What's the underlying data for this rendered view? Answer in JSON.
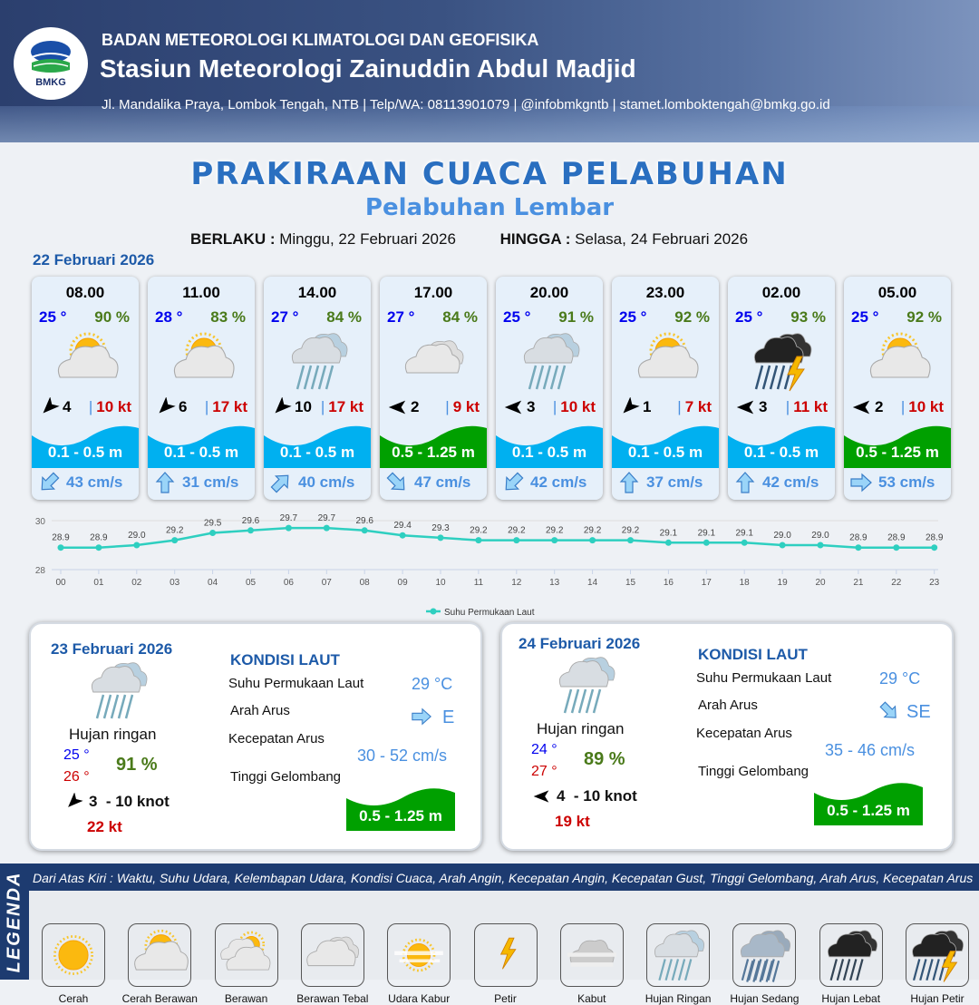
{
  "header": {
    "logo_text": "BMKG",
    "agency": "BADAN METEOROLOGI KLIMATOLOGI DAN GEOFISIKA",
    "station": "Stasiun Meteorologi Zainuddin Abdul Madjid",
    "contact": "Jl. Mandalika Praya, Lombok Tengah, NTB | Telp/WA: 08113901079 | @infobmkgntb | stamet.lomboktengah@bmkg.go.id"
  },
  "title": "PRAKIRAAN CUACA PELABUHAN",
  "subtitle": "Pelabuhan Lembar",
  "validity": {
    "from_label": "BERLAKU :",
    "from": "Minggu, 22 Februari 2026",
    "to_label": "HINGGA :",
    "to": "Selasa, 24 Februari 2026"
  },
  "day1": {
    "date": "22 Februari 2026",
    "forecasts": [
      {
        "time": "08.00",
        "temp": "25 °",
        "rh": "90 %",
        "icon": "cerah-berawan",
        "wind_dir": "NE",
        "wind": "4",
        "gust": "10 kt",
        "wave": "0.1 - 0.5 m",
        "wave_color": "#00b0f0",
        "cur_dir": "SW",
        "current": "43 cm/s"
      },
      {
        "time": "11.00",
        "temp": "28 °",
        "rh": "83 %",
        "icon": "cerah-berawan",
        "wind_dir": "NE",
        "wind": "6",
        "gust": "17 kt",
        "wave": "0.1 - 0.5 m",
        "wave_color": "#00b0f0",
        "cur_dir": "N",
        "current": "31 cm/s"
      },
      {
        "time": "14.00",
        "temp": "27 °",
        "rh": "84 %",
        "icon": "hujan-ringan",
        "wind_dir": "NE",
        "wind": "10",
        "gust": "17 kt",
        "wave": "0.1 - 0.5 m",
        "wave_color": "#00b0f0",
        "cur_dir": "NE",
        "current": "40 cm/s"
      },
      {
        "time": "17.00",
        "temp": "27 °",
        "rh": "84 %",
        "icon": "berawan-tebal",
        "wind_dir": "W",
        "wind": "2",
        "gust": "9 kt",
        "wave": "0.5 - 1.25 m",
        "wave_color": "#00a000",
        "cur_dir": "SE",
        "current": "47 cm/s"
      },
      {
        "time": "20.00",
        "temp": "25 °",
        "rh": "91 %",
        "icon": "hujan-ringan",
        "wind_dir": "W",
        "wind": "3",
        "gust": "10 kt",
        "wave": "0.1 - 0.5 m",
        "wave_color": "#00b0f0",
        "cur_dir": "SW",
        "current": "42 cm/s"
      },
      {
        "time": "23.00",
        "temp": "25 °",
        "rh": "92 %",
        "icon": "cerah-berawan",
        "wind_dir": "SW",
        "wind": "1",
        "gust": "7 kt",
        "wave": "0.1 - 0.5 m",
        "wave_color": "#00b0f0",
        "cur_dir": "N",
        "current": "37 cm/s"
      },
      {
        "time": "02.00",
        "temp": "25 °",
        "rh": "93 %",
        "icon": "hujan-petir",
        "wind_dir": "W",
        "wind": "3",
        "gust": "11 kt",
        "wave": "0.1 - 0.5 m",
        "wave_color": "#00b0f0",
        "cur_dir": "N",
        "current": "42 cm/s"
      },
      {
        "time": "05.00",
        "temp": "25 °",
        "rh": "92 %",
        "icon": "cerah-berawan",
        "wind_dir": "W",
        "wind": "2",
        "gust": "10 kt",
        "wave": "0.5 - 1.25 m",
        "wave_color": "#00a000",
        "cur_dir": "E",
        "current": "53 cm/s"
      }
    ]
  },
  "chart_data": {
    "type": "line",
    "x": [
      "00",
      "01",
      "02",
      "03",
      "04",
      "05",
      "06",
      "07",
      "08",
      "09",
      "10",
      "11",
      "12",
      "13",
      "14",
      "15",
      "16",
      "17",
      "18",
      "19",
      "20",
      "21",
      "22",
      "23"
    ],
    "series": [
      {
        "name": "Suhu Permukaan Laut",
        "values": [
          28.9,
          28.9,
          29.0,
          29.2,
          29.5,
          29.6,
          29.7,
          29.7,
          29.6,
          29.4,
          29.3,
          29.2,
          29.2,
          29.2,
          29.2,
          29.2,
          29.1,
          29.1,
          29.1,
          29.0,
          29.0,
          28.9,
          28.9,
          28.9
        ],
        "color": "#2ecfc0"
      }
    ],
    "ylim": [
      28,
      30
    ],
    "yticks": [
      "28",
      "30"
    ],
    "grid": true,
    "legend": "bottom"
  },
  "days": [
    {
      "date": "23 Februari 2026",
      "icon": "hujan-ringan",
      "condition": "Hujan ringan",
      "tmin": "25 °",
      "tmax": "26 °",
      "rh": "91 %",
      "wind_dir": "NE",
      "wind": "3  - 10 knot",
      "gust": "22 kt",
      "heading": "KONDISI LAUT",
      "sst_label": "Suhu Permukaan Laut",
      "sst": "29 °C",
      "cur_dir_label": "Arah Arus",
      "cur_dir": "E",
      "cur_speed_label": "Kecepatan Arus",
      "cur_speed": "30 - 52 cm/s",
      "wave_label": "Tinggi Gelombang",
      "wave": "0.5 - 1.25 m"
    },
    {
      "date": "24 Februari 2026",
      "icon": "hujan-ringan",
      "condition": "Hujan ringan",
      "tmin": "24 °",
      "tmax": "27 °",
      "rh": "89 %",
      "wind_dir": "W",
      "wind": "4  - 10 knot",
      "gust": "19 kt",
      "heading": "KONDISI LAUT",
      "sst_label": "Suhu Permukaan Laut",
      "sst": "29 °C",
      "cur_dir_label": "Arah Arus",
      "cur_dir": "SE",
      "cur_speed_label": "Kecepatan Arus",
      "cur_speed": "35 - 46 cm/s",
      "wave_label": "Tinggi Gelombang",
      "wave": "0.5 - 1.25 m"
    }
  ],
  "legend": {
    "title": "LEGENDA",
    "description": "Dari Atas Kiri : Waktu, Suhu Udara, Kelembapan Udara, Kondisi Cuaca, Arah Angin, Kecepatan Angin, Kecepatan Gust, Tinggi Gelombang, Arah Arus, Kecepatan Arus",
    "items": [
      {
        "label": "Cerah",
        "icon": "cerah"
      },
      {
        "label": "Cerah Berawan",
        "icon": "cerah-berawan"
      },
      {
        "label": "Berawan",
        "icon": "berawan"
      },
      {
        "label": "Berawan Tebal",
        "icon": "berawan-tebal"
      },
      {
        "label": "Udara Kabur",
        "icon": "udara-kabur"
      },
      {
        "label": "Petir",
        "icon": "petir"
      },
      {
        "label": "Kabut",
        "icon": "kabut"
      },
      {
        "label": "Hujan Ringan",
        "icon": "hujan-ringan"
      },
      {
        "label": "Hujan Sedang",
        "icon": "hujan-sedang"
      },
      {
        "label": "Hujan Lebat",
        "icon": "hujan-lebat"
      },
      {
        "label": "Hujan Petir",
        "icon": "hujan-petir"
      }
    ]
  }
}
